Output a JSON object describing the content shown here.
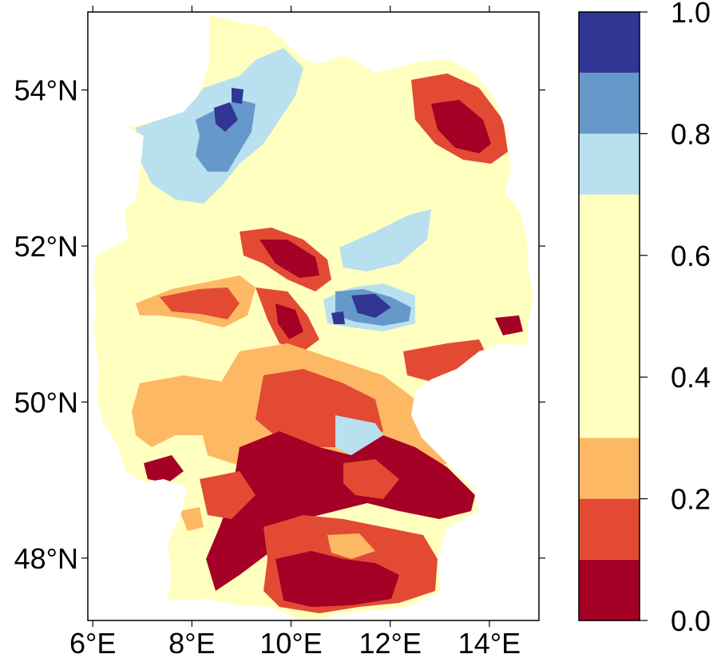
{
  "map": {
    "lat_ticks": [
      "54°N",
      "52°N",
      "50°N",
      "48°N"
    ],
    "lon_ticks": [
      "6°E",
      "8°E",
      "10°E",
      "12°E",
      "14°E"
    ],
    "lat_values": [
      54,
      52,
      50,
      48
    ],
    "lon_values": [
      6,
      8,
      10,
      12,
      14
    ],
    "extent": {
      "lon": [
        5.9,
        15.0
      ],
      "lat": [
        47.2,
        55.0
      ]
    },
    "legend": {
      "ticks": [
        "0.0",
        "0.2",
        "0.4",
        "0.6",
        "0.8",
        "1.0"
      ],
      "bins": [
        {
          "range": [
            0.0,
            0.1
          ],
          "color": "#a50026"
        },
        {
          "range": [
            0.1,
            0.2
          ],
          "color": "#e34a33"
        },
        {
          "range": [
            0.2,
            0.3
          ],
          "color": "#fdb863"
        },
        {
          "range": [
            0.3,
            0.7
          ],
          "color": "#ffffbf"
        },
        {
          "range": [
            0.7,
            0.8
          ],
          "color": "#b8e0ee"
        },
        {
          "range": [
            0.8,
            0.9
          ],
          "color": "#6699c9"
        },
        {
          "range": [
            0.9,
            1.0
          ],
          "color": "#313695"
        }
      ]
    }
  }
}
